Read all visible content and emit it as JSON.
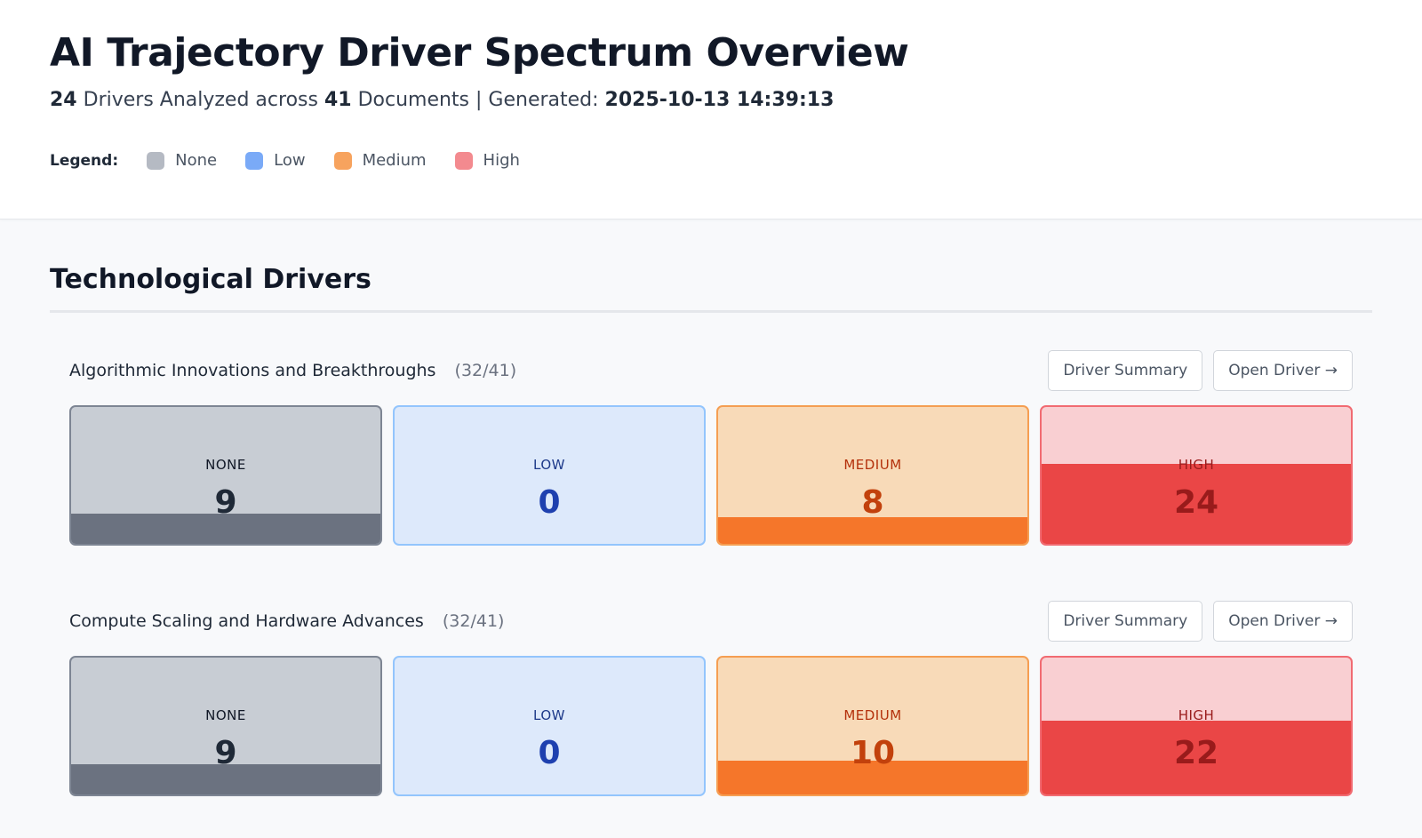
{
  "header": {
    "title": "AI Trajectory Driver Spectrum Overview",
    "drivers_count": "24",
    "drivers_text": "Drivers Analyzed across",
    "documents_count": "41",
    "documents_text": "Documents | Generated:",
    "generated": "2025-10-13 14:39:13"
  },
  "legend": {
    "label": "Legend:",
    "items": [
      {
        "label": "None",
        "color": "#b5bac3"
      },
      {
        "label": "Low",
        "color": "#7aaaf7"
      },
      {
        "label": "Medium",
        "color": "#f7a35e"
      },
      {
        "label": "High",
        "color": "#f38a8f"
      }
    ]
  },
  "section": {
    "title": "Technological Drivers",
    "drivers": [
      {
        "name": "Algorithmic Innovations and Breakthroughs",
        "count": "(32/41)",
        "summary_label": "Driver Summary",
        "open_label": "Open Driver →",
        "levels": [
          {
            "label": "NONE",
            "value": "9",
            "fill_fraction": 0.22
          },
          {
            "label": "LOW",
            "value": "0",
            "fill_fraction": 0.0
          },
          {
            "label": "MEDIUM",
            "value": "8",
            "fill_fraction": 0.195
          },
          {
            "label": "HIGH",
            "value": "24",
            "fill_fraction": 0.585
          }
        ]
      },
      {
        "name": "Compute Scaling and Hardware Advances",
        "count": "(32/41)",
        "summary_label": "Driver Summary",
        "open_label": "Open Driver →",
        "levels": [
          {
            "label": "NONE",
            "value": "9",
            "fill_fraction": 0.22
          },
          {
            "label": "LOW",
            "value": "0",
            "fill_fraction": 0.0
          },
          {
            "label": "MEDIUM",
            "value": "10",
            "fill_fraction": 0.244
          },
          {
            "label": "HIGH",
            "value": "22",
            "fill_fraction": 0.537
          }
        ]
      }
    ]
  }
}
